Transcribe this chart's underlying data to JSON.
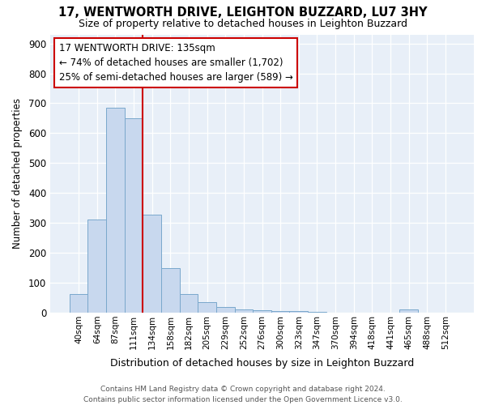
{
  "title": "17, WENTWORTH DRIVE, LEIGHTON BUZZARD, LU7 3HY",
  "subtitle": "Size of property relative to detached houses in Leighton Buzzard",
  "xlabel": "Distribution of detached houses by size in Leighton Buzzard",
  "ylabel": "Number of detached properties",
  "categories": [
    "40sqm",
    "64sqm",
    "87sqm",
    "111sqm",
    "134sqm",
    "158sqm",
    "182sqm",
    "205sqm",
    "229sqm",
    "252sqm",
    "276sqm",
    "300sqm",
    "323sqm",
    "347sqm",
    "370sqm",
    "394sqm",
    "418sqm",
    "441sqm",
    "465sqm",
    "488sqm",
    "512sqm"
  ],
  "values": [
    63,
    310,
    685,
    650,
    328,
    150,
    63,
    35,
    18,
    12,
    8,
    5,
    5,
    3,
    0,
    0,
    0,
    0,
    10,
    0,
    0
  ],
  "bar_color": "#c8d8ee",
  "bar_edge_color": "#7aa8cc",
  "fig_bg_color": "#ffffff",
  "ax_bg_color": "#e8eff8",
  "grid_color": "#ffffff",
  "vline_color": "#cc0000",
  "vline_index": 3.5,
  "annotation_text": "17 WENTWORTH DRIVE: 135sqm\n← 74% of detached houses are smaller (1,702)\n25% of semi-detached houses are larger (589) →",
  "annotation_box_edge": "#cc0000",
  "footer_line1": "Contains HM Land Registry data © Crown copyright and database right 2024.",
  "footer_line2": "Contains public sector information licensed under the Open Government Licence v3.0.",
  "ylim": [
    0,
    930
  ],
  "yticks": [
    0,
    100,
    200,
    300,
    400,
    500,
    600,
    700,
    800,
    900
  ]
}
